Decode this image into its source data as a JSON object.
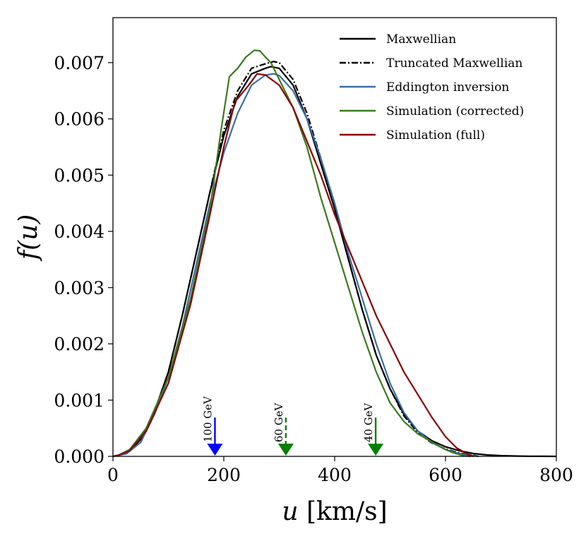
{
  "chart_data": {
    "type": "line",
    "xlabel": "u",
    "xlabel_unit": "[km/s]",
    "ylabel": "f(u)",
    "xlim": [
      0,
      800
    ],
    "ylim": [
      0,
      0.0078
    ],
    "xticks": [
      0,
      200,
      400,
      600,
      800
    ],
    "xtick_labels": [
      "0",
      "200",
      "400",
      "600",
      "800"
    ],
    "yticks": [
      0,
      0.001,
      0.002,
      0.003,
      0.004,
      0.005,
      0.006,
      0.007
    ],
    "ytick_labels": [
      "0.000",
      "0.001",
      "0.002",
      "0.003",
      "0.004",
      "0.005",
      "0.006",
      "0.007"
    ],
    "legend_position": "top-right",
    "series": [
      {
        "name": "Maxwellian",
        "color": "#000000",
        "dash": "solid",
        "x": [
          0,
          25,
          50,
          75,
          100,
          125,
          150,
          175,
          200,
          225,
          250,
          275,
          285,
          300,
          325,
          350,
          375,
          400,
          425,
          450,
          475,
          500,
          525,
          550,
          575,
          600,
          625,
          650,
          675,
          700,
          725,
          750,
          775,
          800
        ],
        "y": [
          0,
          5e-05,
          0.0003,
          0.0008,
          0.0015,
          0.0025,
          0.0036,
          0.0047,
          0.0057,
          0.0064,
          0.0068,
          0.0069,
          0.00693,
          0.0069,
          0.0066,
          0.006,
          0.0052,
          0.0044,
          0.0035,
          0.0026,
          0.0018,
          0.0012,
          0.00075,
          0.00045,
          0.00028,
          0.00017,
          0.0001,
          5e-05,
          2.5e-05,
          1.2e-05,
          6e-06,
          3e-06,
          1e-06,
          0
        ]
      },
      {
        "name": "Truncated Maxwellian",
        "color": "#000000",
        "dash": "dashdot",
        "x": [
          0,
          25,
          50,
          75,
          100,
          125,
          150,
          175,
          200,
          225,
          250,
          275,
          290,
          300,
          325,
          350,
          375,
          400,
          425,
          450,
          475,
          500,
          525,
          550,
          575,
          600,
          625,
          650,
          660
        ],
        "y": [
          0,
          5e-05,
          0.0003,
          0.0008,
          0.0015,
          0.0025,
          0.0036,
          0.0047,
          0.0058,
          0.0065,
          0.0069,
          0.00698,
          0.00702,
          0.007,
          0.0067,
          0.0061,
          0.0053,
          0.0044,
          0.0035,
          0.0026,
          0.0018,
          0.0012,
          0.00072,
          0.00042,
          0.00024,
          0.00013,
          6e-05,
          2e-05,
          0
        ]
      },
      {
        "name": "Eddington inversion",
        "color": "#3a6ea5",
        "dash": "solid",
        "x": [
          0,
          25,
          50,
          75,
          100,
          125,
          150,
          175,
          200,
          225,
          250,
          275,
          290,
          300,
          325,
          350,
          375,
          400,
          425,
          450,
          475,
          500,
          525,
          550,
          575,
          600,
          625,
          650,
          660
        ],
        "y": [
          0,
          5e-05,
          0.00025,
          0.00075,
          0.0014,
          0.0023,
          0.0034,
          0.0045,
          0.0054,
          0.0061,
          0.0066,
          0.00678,
          0.0068,
          0.00677,
          0.0065,
          0.006,
          0.0053,
          0.0045,
          0.0036,
          0.0028,
          0.002,
          0.0013,
          0.00078,
          0.00045,
          0.00025,
          0.00012,
          5e-05,
          1e-05,
          0
        ]
      },
      {
        "name": "Simulation (corrected)",
        "color": "#3a7a1e",
        "dash": "solid",
        "x": [
          0,
          10,
          30,
          60,
          100,
          140,
          175,
          195,
          210,
          225,
          240,
          255,
          265,
          275,
          285,
          300,
          325,
          350,
          375,
          400,
          425,
          450,
          475,
          500,
          525,
          550,
          575,
          600,
          615,
          630,
          645
        ],
        "y": [
          0,
          2e-05,
          0.00012,
          0.0005,
          0.0014,
          0.0028,
          0.0044,
          0.0058,
          0.00675,
          0.0069,
          0.0071,
          0.00722,
          0.00721,
          0.0071,
          0.007,
          0.0067,
          0.0062,
          0.0055,
          0.0046,
          0.0038,
          0.003,
          0.0022,
          0.0015,
          0.00095,
          0.00062,
          0.0004,
          0.00026,
          0.00012,
          6e-05,
          2e-05,
          0
        ]
      },
      {
        "name": "Simulation (full)",
        "color": "#8b0000",
        "dash": "solid",
        "x": [
          0,
          10,
          30,
          60,
          100,
          140,
          175,
          200,
          220,
          245,
          260,
          275,
          300,
          325,
          350,
          375,
          400,
          425,
          450,
          475,
          500,
          525,
          550,
          575,
          600,
          620,
          640,
          650
        ],
        "y": [
          0,
          2e-05,
          0.0001,
          0.00045,
          0.0013,
          0.0027,
          0.0043,
          0.0055,
          0.0063,
          0.0066,
          0.0068,
          0.00678,
          0.0066,
          0.0062,
          0.0056,
          0.005,
          0.0043,
          0.0037,
          0.0031,
          0.0025,
          0.002,
          0.0015,
          0.0011,
          0.0007,
          0.00035,
          0.00015,
          4e-05,
          0
        ]
      }
    ],
    "markers": [
      {
        "label": "100 GeV",
        "x": 184,
        "color": "#0000ff",
        "style": "solid"
      },
      {
        "label": "60 GeV",
        "x": 312,
        "color": "#008000",
        "style": "dashed"
      },
      {
        "label": "40 GeV",
        "x": 474,
        "color": "#008000",
        "style": "solid"
      }
    ]
  }
}
